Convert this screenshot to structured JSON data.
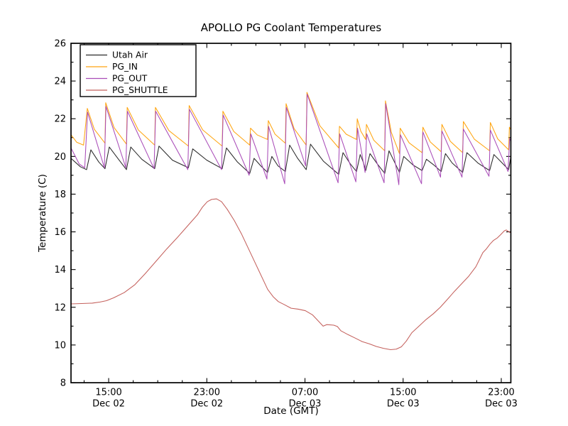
{
  "figure": {
    "background": "#ffffff",
    "title": "APOLLO PG Coolant Temperatures"
  },
  "chart_data": {
    "type": "line",
    "title": "APOLLO PG Coolant Temperatures",
    "xlabel": "Date (GMT)",
    "ylabel": "Temperature (C)",
    "x_unit": "hours since Dec 02 00:00 GMT",
    "xlim": [
      11.93,
      47.78
    ],
    "ylim": [
      8,
      26
    ],
    "grid": false,
    "legend_position": "upper left",
    "tick_direction": "in",
    "x_major_ticks": [
      {
        "t": 15,
        "time": "15:00",
        "date": "Dec 02"
      },
      {
        "t": 23,
        "time": "23:00",
        "date": "Dec 02"
      },
      {
        "t": 31,
        "time": "07:00",
        "date": "Dec 03"
      },
      {
        "t": 39,
        "time": "15:00",
        "date": "Dec 03"
      },
      {
        "t": 47,
        "time": "23:00",
        "date": "Dec 03"
      }
    ],
    "x_minor_ticks": [
      13,
      17,
      19,
      21,
      25,
      27,
      29,
      33,
      35,
      37,
      41,
      43,
      45
    ],
    "y_major_ticks": [
      8,
      10,
      12,
      14,
      16,
      18,
      20,
      22,
      24,
      26
    ],
    "y_minor_ticks": [
      9,
      11,
      13,
      15,
      17,
      19,
      21,
      23,
      25
    ],
    "series": [
      {
        "name": "Utah Air",
        "color": "#2a2a2a",
        "points": [
          [
            11.93,
            19.9
          ],
          [
            12.7,
            19.45
          ],
          [
            13.2,
            19.3
          ],
          [
            13.55,
            20.35
          ],
          [
            14.2,
            19.7
          ],
          [
            14.7,
            19.35
          ],
          [
            15.05,
            20.5
          ],
          [
            15.8,
            19.85
          ],
          [
            16.45,
            19.3
          ],
          [
            16.8,
            20.5
          ],
          [
            17.7,
            19.85
          ],
          [
            18.75,
            19.35
          ],
          [
            19.1,
            20.55
          ],
          [
            20.2,
            19.8
          ],
          [
            21.5,
            19.4
          ],
          [
            21.85,
            20.4
          ],
          [
            23.0,
            19.8
          ],
          [
            24.25,
            19.35
          ],
          [
            24.6,
            20.45
          ],
          [
            25.5,
            19.7
          ],
          [
            26.5,
            19.1
          ],
          [
            26.85,
            19.9
          ],
          [
            27.4,
            19.5
          ],
          [
            27.95,
            19.15
          ],
          [
            28.3,
            20.0
          ],
          [
            28.8,
            19.5
          ],
          [
            29.4,
            19.2
          ],
          [
            29.75,
            20.6
          ],
          [
            30.4,
            19.9
          ],
          [
            31.1,
            19.3
          ],
          [
            31.45,
            20.65
          ],
          [
            32.5,
            19.75
          ],
          [
            33.75,
            19.05
          ],
          [
            34.1,
            20.2
          ],
          [
            34.7,
            19.6
          ],
          [
            35.2,
            19.2
          ],
          [
            35.5,
            20.1
          ],
          [
            35.75,
            19.7
          ],
          [
            35.95,
            19.25
          ],
          [
            36.3,
            20.15
          ],
          [
            36.9,
            19.6
          ],
          [
            37.5,
            19.1
          ],
          [
            37.85,
            20.3
          ],
          [
            38.3,
            19.7
          ],
          [
            38.7,
            19.15
          ],
          [
            39.05,
            20.0
          ],
          [
            39.8,
            19.55
          ],
          [
            40.55,
            19.25
          ],
          [
            40.9,
            19.85
          ],
          [
            41.5,
            19.55
          ],
          [
            42.1,
            19.2
          ],
          [
            42.45,
            20.15
          ],
          [
            43.0,
            19.65
          ],
          [
            43.85,
            19.15
          ],
          [
            44.2,
            20.2
          ],
          [
            45.1,
            19.65
          ],
          [
            46.05,
            19.25
          ],
          [
            46.4,
            20.1
          ],
          [
            47.0,
            19.7
          ],
          [
            47.6,
            19.3
          ],
          [
            47.78,
            20.0
          ]
        ]
      },
      {
        "name": "PG_IN",
        "color": "#ffa510",
        "points": [
          [
            11.93,
            21.15
          ],
          [
            12.4,
            20.75
          ],
          [
            12.95,
            20.6
          ],
          [
            13.26,
            22.55
          ],
          [
            13.83,
            21.44
          ],
          [
            14.7,
            20.7
          ],
          [
            14.76,
            22.85
          ],
          [
            15.44,
            21.53
          ],
          [
            16.45,
            20.65
          ],
          [
            16.51,
            22.6
          ],
          [
            17.42,
            21.4
          ],
          [
            18.75,
            20.6
          ],
          [
            18.81,
            22.6
          ],
          [
            19.91,
            21.37
          ],
          [
            21.5,
            20.55
          ],
          [
            21.56,
            22.7
          ],
          [
            22.66,
            21.41
          ],
          [
            24.25,
            20.55
          ],
          [
            24.31,
            22.4
          ],
          [
            25.2,
            21.32
          ],
          [
            26.5,
            20.6
          ],
          [
            26.56,
            21.5
          ],
          [
            27.11,
            21.14
          ],
          [
            27.95,
            20.9
          ],
          [
            28.01,
            21.9
          ],
          [
            28.56,
            21.18
          ],
          [
            29.4,
            20.7
          ],
          [
            29.46,
            22.8
          ],
          [
            30.11,
            21.48
          ],
          [
            31.1,
            20.6
          ],
          [
            31.16,
            23.4
          ],
          [
            32.21,
            21.63
          ],
          [
            33.75,
            20.45
          ],
          [
            33.81,
            21.6
          ],
          [
            34.36,
            21.18
          ],
          [
            35.2,
            20.9
          ],
          [
            35.26,
            22.0
          ],
          [
            35.55,
            21.34
          ],
          [
            35.95,
            20.9
          ],
          [
            36.01,
            21.7
          ],
          [
            36.61,
            20.86
          ],
          [
            37.5,
            20.3
          ],
          [
            37.56,
            22.95
          ],
          [
            38.04,
            21.27
          ],
          [
            38.7,
            20.15
          ],
          [
            38.76,
            21.5
          ],
          [
            39.49,
            20.72
          ],
          [
            40.55,
            20.2
          ],
          [
            40.61,
            21.55
          ],
          [
            41.21,
            20.77
          ],
          [
            42.1,
            20.25
          ],
          [
            42.16,
            21.7
          ],
          [
            42.85,
            20.8
          ],
          [
            43.85,
            20.2
          ],
          [
            43.91,
            21.85
          ],
          [
            44.8,
            20.92
          ],
          [
            46.05,
            20.3
          ],
          [
            46.11,
            21.8
          ],
          [
            46.71,
            20.93
          ],
          [
            47.6,
            20.35
          ],
          [
            47.66,
            21.55
          ],
          [
            47.78,
            21.4
          ]
        ]
      },
      {
        "name": "PG_OUT",
        "color": "#a94cb8",
        "points": [
          [
            11.93,
            20.45
          ],
          [
            12.6,
            19.6
          ],
          [
            13.05,
            19.4
          ],
          [
            13.28,
            22.35
          ],
          [
            14.65,
            19.4
          ],
          [
            14.78,
            22.65
          ],
          [
            16.4,
            19.4
          ],
          [
            16.53,
            22.4
          ],
          [
            18.7,
            19.35
          ],
          [
            18.83,
            22.4
          ],
          [
            21.45,
            19.3
          ],
          [
            21.58,
            22.5
          ],
          [
            24.2,
            19.3
          ],
          [
            24.33,
            22.2
          ],
          [
            26.45,
            19.0
          ],
          [
            26.58,
            21.2
          ],
          [
            27.9,
            18.8
          ],
          [
            28.03,
            21.6
          ],
          [
            29.35,
            18.55
          ],
          [
            29.48,
            22.6
          ],
          [
            31.05,
            19.5
          ],
          [
            31.18,
            23.3
          ],
          [
            33.7,
            18.6
          ],
          [
            33.83,
            21.2
          ],
          [
            35.15,
            18.65
          ],
          [
            35.28,
            21.5
          ],
          [
            35.9,
            19.15
          ],
          [
            36.03,
            21.2
          ],
          [
            37.45,
            18.6
          ],
          [
            37.58,
            22.8
          ],
          [
            38.65,
            18.5
          ],
          [
            38.78,
            21.15
          ],
          [
            40.5,
            18.55
          ],
          [
            40.61,
            21.3
          ],
          [
            42.05,
            18.9
          ],
          [
            42.16,
            21.35
          ],
          [
            43.8,
            18.9
          ],
          [
            43.91,
            21.45
          ],
          [
            46.0,
            18.95
          ],
          [
            46.11,
            21.4
          ],
          [
            47.55,
            19.2
          ],
          [
            47.68,
            20.95
          ],
          [
            47.78,
            20.8
          ]
        ]
      },
      {
        "name": "PG_SHUTTLE",
        "color": "#c4605c",
        "points": [
          [
            11.93,
            12.18
          ],
          [
            12.8,
            12.2
          ],
          [
            13.67,
            12.22
          ],
          [
            14.3,
            12.28
          ],
          [
            14.82,
            12.35
          ],
          [
            15.4,
            12.5
          ],
          [
            16.27,
            12.78
          ],
          [
            17.14,
            13.2
          ],
          [
            18.0,
            13.8
          ],
          [
            18.87,
            14.45
          ],
          [
            19.74,
            15.1
          ],
          [
            20.6,
            15.7
          ],
          [
            21.48,
            16.35
          ],
          [
            22.23,
            16.9
          ],
          [
            22.63,
            17.3
          ],
          [
            23.04,
            17.6
          ],
          [
            23.39,
            17.72
          ],
          [
            23.79,
            17.75
          ],
          [
            24.2,
            17.6
          ],
          [
            24.66,
            17.2
          ],
          [
            25.24,
            16.6
          ],
          [
            25.82,
            15.9
          ],
          [
            26.4,
            15.1
          ],
          [
            26.98,
            14.3
          ],
          [
            27.56,
            13.5
          ],
          [
            27.96,
            12.95
          ],
          [
            28.42,
            12.55
          ],
          [
            28.83,
            12.3
          ],
          [
            29.29,
            12.15
          ],
          [
            29.87,
            11.95
          ],
          [
            30.45,
            11.9
          ],
          [
            31.03,
            11.82
          ],
          [
            31.61,
            11.6
          ],
          [
            32.19,
            11.2
          ],
          [
            32.48,
            11.0
          ],
          [
            32.77,
            11.08
          ],
          [
            33.35,
            11.05
          ],
          [
            33.64,
            10.98
          ],
          [
            33.93,
            10.75
          ],
          [
            34.51,
            10.55
          ],
          [
            35.08,
            10.37
          ],
          [
            35.66,
            10.18
          ],
          [
            36.24,
            10.06
          ],
          [
            36.82,
            9.92
          ],
          [
            37.4,
            9.82
          ],
          [
            37.98,
            9.75
          ],
          [
            38.44,
            9.78
          ],
          [
            38.85,
            9.9
          ],
          [
            39.25,
            10.2
          ],
          [
            39.71,
            10.65
          ],
          [
            40.29,
            11.0
          ],
          [
            40.87,
            11.35
          ],
          [
            41.45,
            11.65
          ],
          [
            42.03,
            12.0
          ],
          [
            42.72,
            12.5
          ],
          [
            43.19,
            12.85
          ],
          [
            43.77,
            13.25
          ],
          [
            44.35,
            13.65
          ],
          [
            44.93,
            14.15
          ],
          [
            45.5,
            14.9
          ],
          [
            45.79,
            15.1
          ],
          [
            46.08,
            15.35
          ],
          [
            46.37,
            15.55
          ],
          [
            46.66,
            15.67
          ],
          [
            46.95,
            15.85
          ],
          [
            47.24,
            16.05
          ],
          [
            47.41,
            16.1
          ],
          [
            47.7,
            15.97
          ],
          [
            47.78,
            15.95
          ]
        ]
      }
    ]
  }
}
